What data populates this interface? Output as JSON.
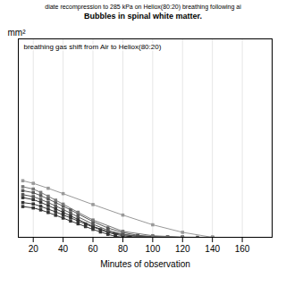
{
  "chart_data": {
    "type": "line",
    "subtitle": "diate recompression to 285 kPa on Heliox(80:20) breathing following ai",
    "title": "Bubbles in spinal white matter.",
    "ylabel": "mm²",
    "xlabel": "Minutes of observation",
    "annotation": "breathing gas shift from Air to Heliox(80:20)",
    "xlim": [
      10,
      180
    ],
    "ylim": [
      0,
      1.0
    ],
    "xticks": [
      20,
      40,
      60,
      80,
      100,
      120,
      140,
      160
    ],
    "yticks": [],
    "tick_labels": "x",
    "grid": true,
    "series": [
      {
        "color": "#333333",
        "marker": "square",
        "x": [
          13,
          20,
          25,
          30,
          35,
          40,
          45,
          50,
          55,
          60,
          65,
          70,
          75,
          80
        ],
        "values": [
          0.155,
          0.148,
          0.138,
          0.125,
          0.111,
          0.097,
          0.082,
          0.068,
          0.054,
          0.04,
          0.027,
          0.015,
          0.005,
          0.0
        ]
      },
      {
        "color": "#333333",
        "marker": "square",
        "x": [
          13,
          20,
          25,
          30,
          35,
          40,
          45,
          50,
          55,
          60,
          65,
          70,
          75,
          80,
          85,
          90,
          100
        ],
        "values": [
          0.175,
          0.168,
          0.156,
          0.142,
          0.128,
          0.113,
          0.098,
          0.082,
          0.067,
          0.052,
          0.038,
          0.025,
          0.015,
          0.008,
          0.003,
          0.001,
          0.0
        ]
      },
      {
        "color": "#333333",
        "marker": "square",
        "x": [
          13,
          20,
          25,
          30,
          35,
          40,
          45,
          50,
          60,
          70,
          80,
          90,
          100,
          110,
          120
        ],
        "values": [
          0.2,
          0.19,
          0.176,
          0.16,
          0.143,
          0.126,
          0.108,
          0.09,
          0.055,
          0.028,
          0.013,
          0.005,
          0.002,
          0.001,
          0.0
        ]
      },
      {
        "color": "#555555",
        "marker": "square",
        "x": [
          13,
          20,
          25,
          30,
          35,
          40,
          45,
          50,
          60,
          70,
          80,
          90,
          100,
          110,
          120
        ],
        "values": [
          0.215,
          0.205,
          0.191,
          0.175,
          0.158,
          0.14,
          0.122,
          0.103,
          0.066,
          0.035,
          0.015,
          0.006,
          0.002,
          0.0,
          0.0
        ]
      },
      {
        "color": "#555555",
        "marker": "square",
        "x": [
          13,
          20,
          25,
          30,
          35,
          40,
          45,
          50,
          60,
          70,
          80,
          90,
          100,
          110,
          120,
          130,
          140
        ],
        "values": [
          0.235,
          0.225,
          0.21,
          0.193,
          0.175,
          0.157,
          0.138,
          0.118,
          0.079,
          0.047,
          0.024,
          0.01,
          0.004,
          0.001,
          0.0,
          0.0,
          0.0
        ]
      },
      {
        "color": "#777777",
        "marker": "square",
        "x": [
          13,
          20,
          25,
          30,
          35,
          40,
          50,
          60,
          80,
          100,
          120,
          140
        ],
        "values": [
          0.255,
          0.243,
          0.226,
          0.207,
          0.187,
          0.167,
          0.126,
          0.087,
          0.03,
          0.008,
          0.001,
          0.0
        ]
      },
      {
        "color": "#999999",
        "marker": "square",
        "x": [
          13,
          20,
          30,
          40,
          60,
          80,
          100,
          120,
          140
        ],
        "values": [
          0.285,
          0.272,
          0.247,
          0.22,
          0.165,
          0.112,
          0.063,
          0.025,
          0.0
        ]
      }
    ]
  }
}
